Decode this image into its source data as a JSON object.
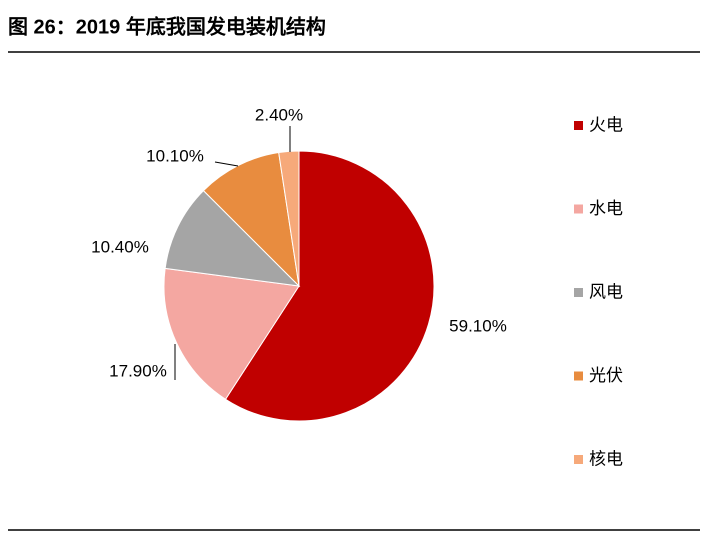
{
  "chart_data": {
    "type": "pie",
    "title": "图 26：2019 年底我国发电装机结构",
    "categories": [
      "火电",
      "水电",
      "风电",
      "光伏",
      "核电"
    ],
    "values": [
      59.1,
      17.9,
      10.4,
      10.1,
      2.4
    ],
    "value_labels": [
      "59.10%",
      "17.90%",
      "10.40%",
      "10.10%",
      "2.40%"
    ],
    "colors": [
      "#c00000",
      "#f4a7a1",
      "#a5a5a5",
      "#e88c3f",
      "#f6a97a"
    ]
  }
}
